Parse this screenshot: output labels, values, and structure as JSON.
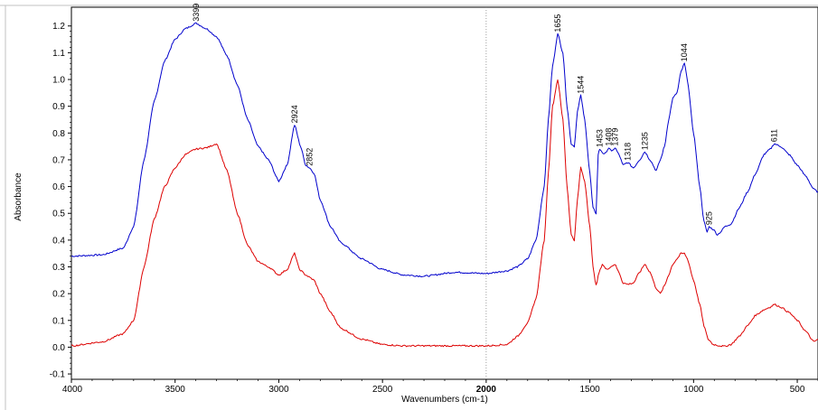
{
  "chart_data": {
    "type": "line",
    "title": "",
    "xlabel": "Wavenumbers (cm-1)",
    "ylabel": "Absorbance",
    "xlim": [
      4000,
      400
    ],
    "ylim": [
      -0.12,
      1.27
    ],
    "x_reversed": true,
    "grid": false,
    "legend": "none",
    "x_ticks": [
      {
        "value": 4000,
        "label": "4000",
        "bold": false
      },
      {
        "value": 3500,
        "label": "3500",
        "bold": false
      },
      {
        "value": 3000,
        "label": "3000",
        "bold": false
      },
      {
        "value": 2500,
        "label": "2500",
        "bold": false
      },
      {
        "value": 2000,
        "label": "2000",
        "bold": true
      },
      {
        "value": 1500,
        "label": "1500",
        "bold": false
      },
      {
        "value": 1000,
        "label": "1000",
        "bold": false
      },
      {
        "value": 500,
        "label": "500",
        "bold": false
      }
    ],
    "y_ticks": [
      {
        "value": -0.1,
        "label": "-0.1"
      },
      {
        "value": 0.0,
        "label": "0.0"
      },
      {
        "value": 0.1,
        "label": "0.1"
      },
      {
        "value": 0.2,
        "label": "0.2"
      },
      {
        "value": 0.3,
        "label": "0.3"
      },
      {
        "value": 0.4,
        "label": "0.4"
      },
      {
        "value": 0.5,
        "label": "0.5"
      },
      {
        "value": 0.6,
        "label": "0.6"
      },
      {
        "value": 0.7,
        "label": "0.7"
      },
      {
        "value": 0.8,
        "label": "0.8"
      },
      {
        "value": 0.9,
        "label": "0.9"
      },
      {
        "value": 1.0,
        "label": "1.0"
      },
      {
        "value": 1.1,
        "label": "1.1"
      },
      {
        "value": 1.2,
        "label": "1.2"
      }
    ],
    "reference_line_x": 2000,
    "series": [
      {
        "color": "#0000cc",
        "points": [
          [
            4000,
            0.34
          ],
          [
            3850,
            0.345
          ],
          [
            3750,
            0.37
          ],
          [
            3700,
            0.45
          ],
          [
            3650,
            0.7
          ],
          [
            3600,
            0.92
          ],
          [
            3550,
            1.07
          ],
          [
            3500,
            1.15
          ],
          [
            3450,
            1.19
          ],
          [
            3399,
            1.21
          ],
          [
            3350,
            1.19
          ],
          [
            3300,
            1.16
          ],
          [
            3250,
            1.09
          ],
          [
            3200,
            0.98
          ],
          [
            3150,
            0.85
          ],
          [
            3100,
            0.75
          ],
          [
            3050,
            0.7
          ],
          [
            3000,
            0.62
          ],
          [
            2960,
            0.68
          ],
          [
            2924,
            0.83
          ],
          [
            2895,
            0.75
          ],
          [
            2870,
            0.68
          ],
          [
            2852,
            0.67
          ],
          [
            2830,
            0.65
          ],
          [
            2800,
            0.55
          ],
          [
            2750,
            0.45
          ],
          [
            2700,
            0.39
          ],
          [
            2600,
            0.33
          ],
          [
            2500,
            0.29
          ],
          [
            2400,
            0.27
          ],
          [
            2300,
            0.265
          ],
          [
            2150,
            0.28
          ],
          [
            2000,
            0.275
          ],
          [
            1900,
            0.285
          ],
          [
            1850,
            0.3
          ],
          [
            1800,
            0.33
          ],
          [
            1760,
            0.4
          ],
          [
            1720,
            0.6
          ],
          [
            1700,
            0.85
          ],
          [
            1680,
            1.05
          ],
          [
            1655,
            1.17
          ],
          [
            1630,
            1.1
          ],
          [
            1610,
            0.9
          ],
          [
            1590,
            0.76
          ],
          [
            1575,
            0.75
          ],
          [
            1560,
            0.88
          ],
          [
            1544,
            0.94
          ],
          [
            1525,
            0.85
          ],
          [
            1500,
            0.65
          ],
          [
            1485,
            0.52
          ],
          [
            1470,
            0.5
          ],
          [
            1460,
            0.72
          ],
          [
            1453,
            0.74
          ],
          [
            1430,
            0.72
          ],
          [
            1408,
            0.745
          ],
          [
            1395,
            0.73
          ],
          [
            1379,
            0.745
          ],
          [
            1360,
            0.72
          ],
          [
            1340,
            0.68
          ],
          [
            1318,
            0.69
          ],
          [
            1290,
            0.67
          ],
          [
            1260,
            0.7
          ],
          [
            1235,
            0.73
          ],
          [
            1210,
            0.7
          ],
          [
            1180,
            0.66
          ],
          [
            1160,
            0.7
          ],
          [
            1140,
            0.75
          ],
          [
            1120,
            0.85
          ],
          [
            1100,
            0.93
          ],
          [
            1080,
            0.95
          ],
          [
            1060,
            1.03
          ],
          [
            1044,
            1.06
          ],
          [
            1030,
            1.0
          ],
          [
            1000,
            0.8
          ],
          [
            970,
            0.6
          ],
          [
            950,
            0.47
          ],
          [
            935,
            0.43
          ],
          [
            925,
            0.45
          ],
          [
            905,
            0.44
          ],
          [
            885,
            0.42
          ],
          [
            870,
            0.43
          ],
          [
            850,
            0.45
          ],
          [
            820,
            0.46
          ],
          [
            780,
            0.52
          ],
          [
            740,
            0.58
          ],
          [
            700,
            0.65
          ],
          [
            660,
            0.72
          ],
          [
            630,
            0.74
          ],
          [
            611,
            0.76
          ],
          [
            580,
            0.75
          ],
          [
            540,
            0.72
          ],
          [
            500,
            0.68
          ],
          [
            460,
            0.64
          ],
          [
            420,
            0.59
          ],
          [
            400,
            0.58
          ]
        ]
      },
      {
        "color": "#dd0000",
        "points": [
          [
            4000,
            0.005
          ],
          [
            3850,
            0.02
          ],
          [
            3750,
            0.05
          ],
          [
            3700,
            0.1
          ],
          [
            3650,
            0.3
          ],
          [
            3600,
            0.48
          ],
          [
            3550,
            0.6
          ],
          [
            3500,
            0.67
          ],
          [
            3450,
            0.72
          ],
          [
            3400,
            0.74
          ],
          [
            3350,
            0.745
          ],
          [
            3300,
            0.76
          ],
          [
            3250,
            0.66
          ],
          [
            3200,
            0.5
          ],
          [
            3150,
            0.38
          ],
          [
            3100,
            0.32
          ],
          [
            3050,
            0.3
          ],
          [
            3000,
            0.27
          ],
          [
            2960,
            0.29
          ],
          [
            2924,
            0.35
          ],
          [
            2900,
            0.29
          ],
          [
            2870,
            0.27
          ],
          [
            2850,
            0.26
          ],
          [
            2830,
            0.25
          ],
          [
            2800,
            0.2
          ],
          [
            2750,
            0.13
          ],
          [
            2700,
            0.07
          ],
          [
            2600,
            0.03
          ],
          [
            2500,
            0.01
          ],
          [
            2400,
            0.005
          ],
          [
            2300,
            0.005
          ],
          [
            2150,
            0.005
          ],
          [
            2000,
            0.005
          ],
          [
            1900,
            0.01
          ],
          [
            1850,
            0.04
          ],
          [
            1800,
            0.09
          ],
          [
            1760,
            0.18
          ],
          [
            1720,
            0.4
          ],
          [
            1700,
            0.65
          ],
          [
            1680,
            0.9
          ],
          [
            1655,
            1.0
          ],
          [
            1630,
            0.85
          ],
          [
            1610,
            0.6
          ],
          [
            1590,
            0.42
          ],
          [
            1575,
            0.4
          ],
          [
            1560,
            0.55
          ],
          [
            1544,
            0.67
          ],
          [
            1525,
            0.62
          ],
          [
            1500,
            0.45
          ],
          [
            1485,
            0.3
          ],
          [
            1470,
            0.23
          ],
          [
            1455,
            0.28
          ],
          [
            1440,
            0.31
          ],
          [
            1420,
            0.29
          ],
          [
            1400,
            0.3
          ],
          [
            1380,
            0.31
          ],
          [
            1360,
            0.28
          ],
          [
            1340,
            0.24
          ],
          [
            1318,
            0.235
          ],
          [
            1290,
            0.24
          ],
          [
            1260,
            0.28
          ],
          [
            1235,
            0.31
          ],
          [
            1210,
            0.28
          ],
          [
            1180,
            0.22
          ],
          [
            1160,
            0.2
          ],
          [
            1140,
            0.23
          ],
          [
            1120,
            0.27
          ],
          [
            1100,
            0.31
          ],
          [
            1080,
            0.33
          ],
          [
            1060,
            0.35
          ],
          [
            1044,
            0.35
          ],
          [
            1030,
            0.33
          ],
          [
            1000,
            0.25
          ],
          [
            970,
            0.16
          ],
          [
            950,
            0.08
          ],
          [
            930,
            0.03
          ],
          [
            905,
            0.01
          ],
          [
            870,
            0.005
          ],
          [
            850,
            0.003
          ],
          [
            820,
            0.01
          ],
          [
            780,
            0.04
          ],
          [
            740,
            0.08
          ],
          [
            700,
            0.12
          ],
          [
            660,
            0.14
          ],
          [
            630,
            0.15
          ],
          [
            611,
            0.16
          ],
          [
            580,
            0.15
          ],
          [
            540,
            0.13
          ],
          [
            500,
            0.1
          ],
          [
            460,
            0.06
          ],
          [
            420,
            0.02
          ],
          [
            400,
            0.03
          ]
        ]
      }
    ],
    "annotations": [
      {
        "label": "3399",
        "x": 3399,
        "y": 1.21
      },
      {
        "label": "2924",
        "x": 2924,
        "y": 0.83
      },
      {
        "label": "2852",
        "x": 2852,
        "y": 0.67
      },
      {
        "label": "1655",
        "x": 1655,
        "y": 1.17
      },
      {
        "label": "1544",
        "x": 1544,
        "y": 0.94
      },
      {
        "label": "1453",
        "x": 1453,
        "y": 0.74
      },
      {
        "label": "1408",
        "x": 1408,
        "y": 0.745
      },
      {
        "label": "1379",
        "x": 1379,
        "y": 0.745
      },
      {
        "label": "1318",
        "x": 1318,
        "y": 0.69
      },
      {
        "label": "1235",
        "x": 1235,
        "y": 0.73
      },
      {
        "label": "1044",
        "x": 1044,
        "y": 1.06
      },
      {
        "label": "925",
        "x": 925,
        "y": 0.45
      },
      {
        "label": "611",
        "x": 611,
        "y": 0.76
      }
    ]
  }
}
